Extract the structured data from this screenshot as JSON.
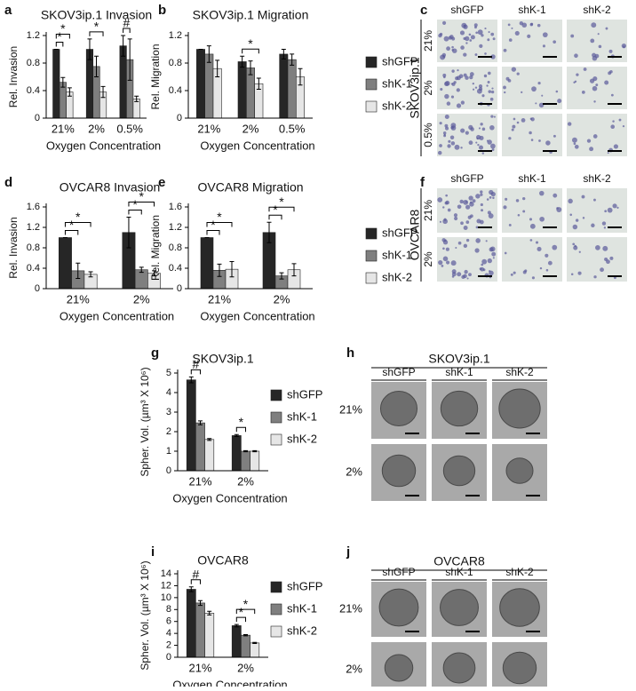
{
  "chart_data": [
    {
      "type": "bar",
      "panel": "a",
      "title": "SKOV3ip.1 Invasion",
      "y_label": "Rel. Invasion",
      "x_label": "Oxygen Concentration",
      "categories": [
        "21%",
        "2%",
        "0.5%"
      ],
      "series": [
        {
          "name": "shGFP",
          "color": "#262626",
          "values": [
            1.0,
            1.0,
            1.05
          ],
          "errors": [
            0.0,
            0.15,
            0.15
          ]
        },
        {
          "name": "shK-1",
          "color": "#7f7f7f",
          "values": [
            0.52,
            0.75,
            0.85
          ],
          "errors": [
            0.07,
            0.15,
            0.3
          ]
        },
        {
          "name": "shK-2",
          "color": "#e6e6e6",
          "values": [
            0.38,
            0.38,
            0.28
          ],
          "errors": [
            0.06,
            0.08,
            0.04
          ]
        }
      ],
      "ylim": [
        0,
        1.2
      ],
      "yticks": [
        0,
        0.4,
        0.8,
        1.2
      ],
      "legend": false,
      "annotations": [
        "*",
        "*",
        "*",
        "#"
      ]
    },
    {
      "type": "bar",
      "panel": "b",
      "title": "SKOV3ip.1 Migration",
      "y_label": "Rel. Migration",
      "x_label": "Oxygen Concentration",
      "categories": [
        "21%",
        "2%",
        "0.5%"
      ],
      "series": [
        {
          "name": "shGFP",
          "color": "#262626",
          "values": [
            1.0,
            0.82,
            0.93
          ],
          "errors": [
            0.0,
            0.08,
            0.07
          ]
        },
        {
          "name": "shK-1",
          "color": "#7f7f7f",
          "values": [
            0.93,
            0.73,
            0.85
          ],
          "errors": [
            0.12,
            0.1,
            0.08
          ]
        },
        {
          "name": "shK-2",
          "color": "#e6e6e6",
          "values": [
            0.72,
            0.5,
            0.6
          ],
          "errors": [
            0.12,
            0.08,
            0.12
          ]
        }
      ],
      "ylim": [
        0,
        1.2
      ],
      "yticks": [
        0,
        0.4,
        0.8,
        1.2
      ],
      "legend": true,
      "annotations": [
        "*"
      ]
    },
    {
      "type": "bar",
      "panel": "d",
      "title": "OVCAR8 Invasion",
      "y_label": "Rel. Invasion",
      "x_label": "Oxygen Concentration",
      "categories": [
        "21%",
        "2%"
      ],
      "series": [
        {
          "name": "shGFP",
          "color": "#262626",
          "values": [
            1.0,
            1.1
          ],
          "errors": [
            0.0,
            0.3
          ]
        },
        {
          "name": "shK-1",
          "color": "#7f7f7f",
          "values": [
            0.35,
            0.37
          ],
          "errors": [
            0.15,
            0.05
          ]
        },
        {
          "name": "shK-2",
          "color": "#e6e6e6",
          "values": [
            0.28,
            0.3
          ],
          "errors": [
            0.05,
            0.05
          ]
        }
      ],
      "ylim": [
        0,
        1.6
      ],
      "yticks": [
        0,
        0.4,
        0.8,
        1.2,
        1.6
      ],
      "legend": false,
      "annotations": [
        "*",
        "*",
        "*",
        "*"
      ]
    },
    {
      "type": "bar",
      "panel": "e",
      "title": "OVCAR8 Migration",
      "y_label": "Rel. Migration",
      "x_label": "Oxygen Concentration",
      "categories": [
        "21%",
        "2%"
      ],
      "series": [
        {
          "name": "shGFP",
          "color": "#262626",
          "values": [
            1.0,
            1.1
          ],
          "errors": [
            0.0,
            0.2
          ]
        },
        {
          "name": "shK-1",
          "color": "#7f7f7f",
          "values": [
            0.36,
            0.25
          ],
          "errors": [
            0.12,
            0.06
          ]
        },
        {
          "name": "shK-2",
          "color": "#e6e6e6",
          "values": [
            0.38,
            0.37
          ],
          "errors": [
            0.15,
            0.12
          ]
        }
      ],
      "ylim": [
        0,
        1.6
      ],
      "yticks": [
        0,
        0.4,
        0.8,
        1.2,
        1.6
      ],
      "legend": true,
      "annotations": [
        "*",
        "*",
        "*",
        "*"
      ]
    },
    {
      "type": "bar",
      "panel": "g",
      "title": "SKOV3ip.1",
      "y_label": "Spher. Vol. (µm³ X 10⁶)",
      "x_label": "Oxygen Concentration",
      "categories": [
        "21%",
        "2%"
      ],
      "series": [
        {
          "name": "shGFP",
          "color": "#262626",
          "values": [
            4.65,
            1.8
          ],
          "errors": [
            0.15,
            0.05
          ]
        },
        {
          "name": "shK-1",
          "color": "#7f7f7f",
          "values": [
            2.45,
            1.0
          ],
          "errors": [
            0.1,
            0.03
          ]
        },
        {
          "name": "shK-2",
          "color": "#e6e6e6",
          "values": [
            1.6,
            1.0
          ],
          "errors": [
            0.05,
            0.03
          ]
        }
      ],
      "ylim": [
        0,
        5
      ],
      "yticks": [
        0,
        1,
        2,
        3,
        4,
        5
      ],
      "legend": true,
      "annotations": [
        "#",
        "*"
      ]
    },
    {
      "type": "bar",
      "panel": "i",
      "title": "OVCAR8",
      "y_label": "Spher. Vol. (µm³ X 10⁶)",
      "x_label": "Oxygen Concentration",
      "categories": [
        "21%",
        "2%"
      ],
      "series": [
        {
          "name": "shGFP",
          "color": "#262626",
          "values": [
            11.4,
            5.3
          ],
          "errors": [
            0.4,
            0.2
          ]
        },
        {
          "name": "shK-1",
          "color": "#7f7f7f",
          "values": [
            9.1,
            3.7
          ],
          "errors": [
            0.4,
            0.1
          ]
        },
        {
          "name": "shK-2",
          "color": "#e6e6e6",
          "values": [
            7.4,
            2.4
          ],
          "errors": [
            0.3,
            0.1
          ]
        }
      ],
      "ylim": [
        0,
        14
      ],
      "yticks": [
        0,
        2,
        4,
        6,
        8,
        10,
        12,
        14
      ],
      "legend": true,
      "annotations": [
        "#",
        "*",
        "*"
      ]
    }
  ],
  "image_panels": [
    {
      "panel": "c",
      "side_label": "SKOV3ip.1",
      "columns": [
        "shGFP",
        "shK-1",
        "shK-2"
      ],
      "rows": [
        "21%",
        "2%",
        "0.5%"
      ]
    },
    {
      "panel": "f",
      "side_label": "OVCAR8",
      "columns": [
        "shGFP",
        "shK-1",
        "shK-2"
      ],
      "rows": [
        "21%",
        "2%"
      ]
    },
    {
      "panel": "h",
      "title": "SKOV3ip.1",
      "columns": [
        "shGFP",
        "shK-1",
        "shK-2"
      ],
      "rows": [
        "21%",
        "2%"
      ]
    },
    {
      "panel": "j",
      "title": "OVCAR8",
      "columns": [
        "shGFP",
        "shK-1",
        "shK-2"
      ],
      "rows": [
        "21%",
        "2%"
      ]
    }
  ]
}
